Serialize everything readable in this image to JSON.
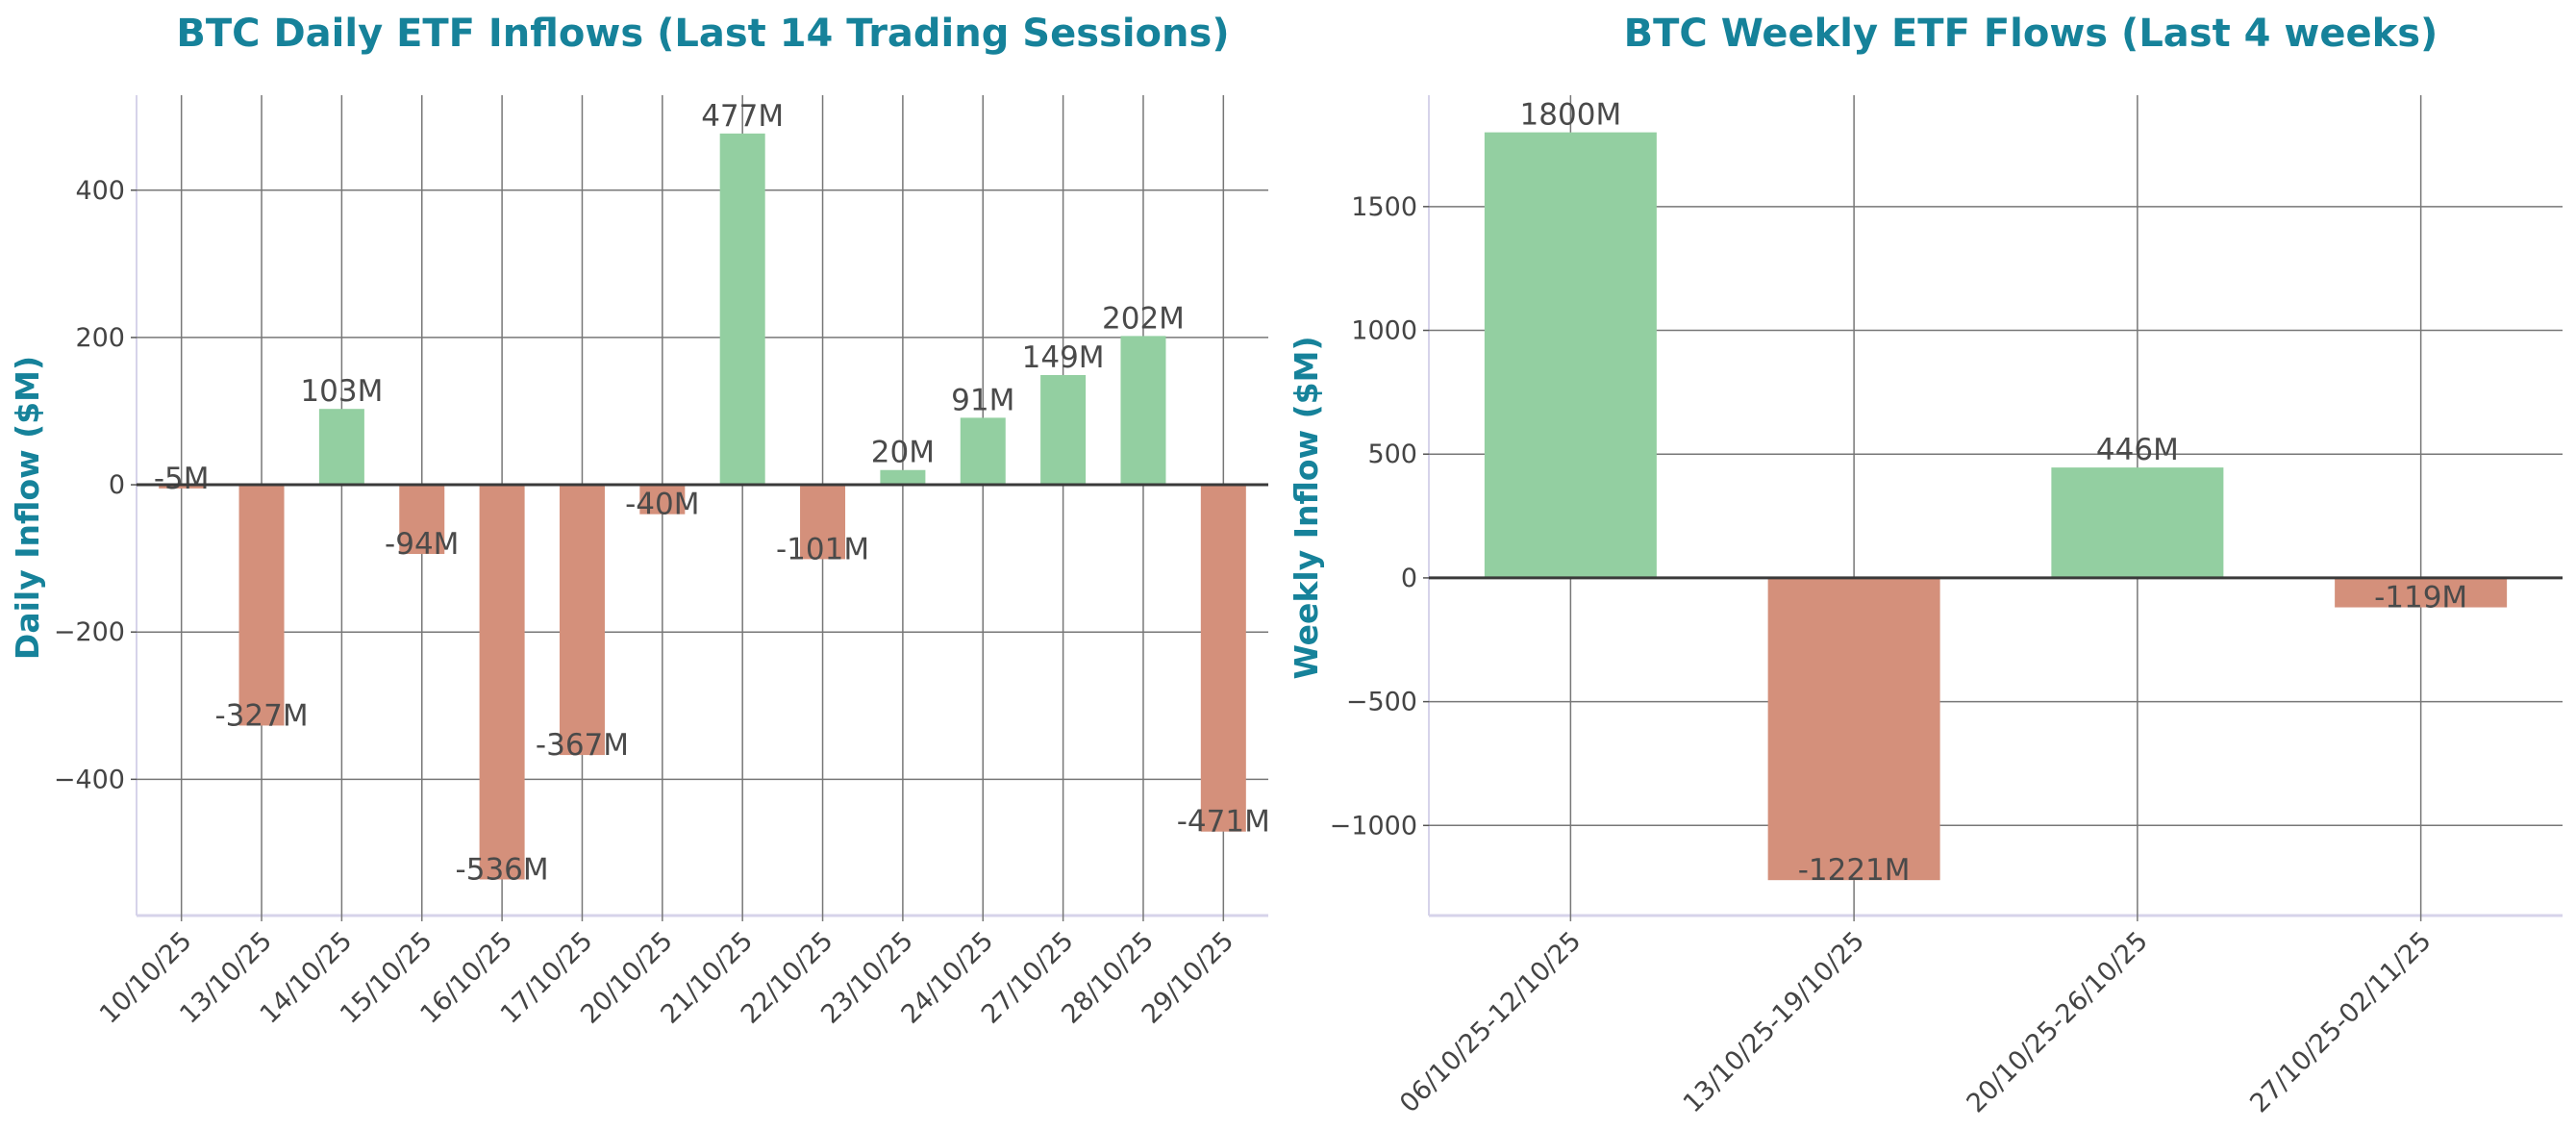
{
  "colors": {
    "positive": "#93cfa1",
    "negative": "#d4907b",
    "title": "#16829a",
    "grid": "#777777",
    "zero_line": "#3a3a3a"
  },
  "chart_data": [
    {
      "type": "bar",
      "title": "BTC Daily ETF Inflows (Last 14 Trading Sessions)",
      "xlabel": "",
      "ylabel": "Daily Inflow ($M)",
      "categories": [
        "10/10/25",
        "13/10/25",
        "14/10/25",
        "15/10/25",
        "16/10/25",
        "17/10/25",
        "20/10/25",
        "21/10/25",
        "22/10/25",
        "23/10/25",
        "24/10/25",
        "27/10/25",
        "28/10/25",
        "29/10/25"
      ],
      "values": [
        -5,
        -327,
        103,
        -94,
        -536,
        -367,
        -40,
        477,
        -101,
        20,
        91,
        149,
        202,
        -471
      ],
      "labels": [
        "-5M",
        "-327M",
        "103M",
        "-94M",
        "-536M",
        "-367M",
        "-40M",
        "477M",
        "-101M",
        "20M",
        "91M",
        "149M",
        "202M",
        "-471M"
      ],
      "yticks": [
        -400,
        -200,
        0,
        200,
        400
      ],
      "ytick_labels": [
        "−400",
        "−200",
        "0",
        "200",
        "400"
      ],
      "ylim": [
        -585,
        529
      ],
      "grid": true
    },
    {
      "type": "bar",
      "title": "BTC Weekly ETF Flows (Last 4 weeks)",
      "xlabel": "",
      "ylabel": "Weekly Inflow ($M)",
      "categories": [
        "06/10/25-12/10/25",
        "13/10/25-19/10/25",
        "20/10/25-26/10/25",
        "27/10/25-02/11/25"
      ],
      "values": [
        1800,
        -1221,
        446,
        -119
      ],
      "labels": [
        "1800M",
        "-1221M",
        "446M",
        "-119M"
      ],
      "yticks": [
        -1000,
        -500,
        0,
        500,
        1000,
        1500
      ],
      "ytick_labels": [
        "−1000",
        "−500",
        "0",
        "500",
        "1000",
        "1500"
      ],
      "ylim": [
        -1364,
        1950
      ],
      "grid": true
    }
  ]
}
